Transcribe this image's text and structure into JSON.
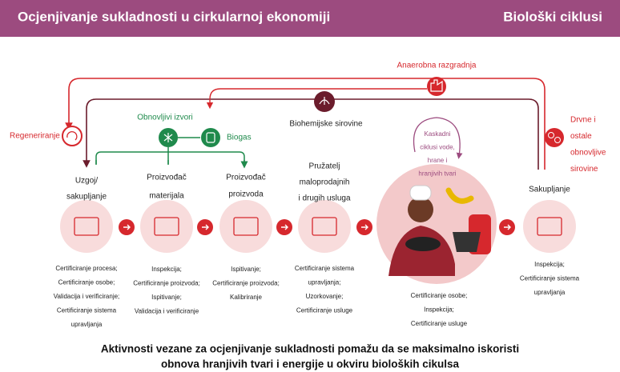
{
  "header": {
    "title": "Ocjenjivanje sukladnosti u cirkularnoj ekonomiji",
    "subtitle": "Biološki ciklusi"
  },
  "flows": {
    "anaerobic": "Anaerobna razgradnja",
    "regeneration": "Regeneriranje",
    "renewable_sources": "Obnovljivi izvori",
    "biogas": "Biogas",
    "biochemical": "Biohemijske sirovine",
    "wood": [
      "Drvne i",
      "ostale",
      "obnovljive",
      "sirovine"
    ],
    "cascade": [
      "Kaskadni",
      "ciklusi vode,",
      "hrane i",
      "hranjivih tvari"
    ]
  },
  "stages": [
    {
      "label": [
        "Uzgoj/",
        "sakupljanje"
      ],
      "activities": [
        "Certificiranje procesa;",
        "Certificiranje osobe;",
        "Validacija i verificiranje;",
        "Certificiranje sistema",
        "upravljanja"
      ]
    },
    {
      "label": [
        "Proizvođač",
        "materijala"
      ],
      "activities": [
        "Inspekcija;",
        "Certificiranje proizvoda;",
        "Ispitivanje;",
        "Validacija i verificiranje"
      ]
    },
    {
      "label": [
        "Proizvođač",
        "proizvoda"
      ],
      "activities": [
        "Ispitivanje;",
        "Certificiranje proizvoda;",
        "Kalibriranje"
      ]
    },
    {
      "label": [
        "Pružatelj",
        "maloprodajnih",
        "i drugih usluga"
      ],
      "activities": [
        "Certificiranje sistema",
        "upravljanja;",
        "Uzorkovanje;",
        "Certificiranje usluge"
      ]
    },
    {
      "label": [],
      "activities": [
        "Certificiranje osobe;",
        "Inspekcija;",
        "Certificiranje usluge"
      ]
    },
    {
      "label": [
        "Sakupljanje"
      ],
      "activities": [
        "Inspekcija;",
        "Certificiranje sistema",
        "upravljanja"
      ]
    }
  ],
  "footer": [
    "Aktivnosti vezane za ocjenjivanje sukladnosti pomažu da se maksimalno iskoristi",
    "obnova hranjivih tvari i energije u okviru bioloških cikulsa"
  ]
}
